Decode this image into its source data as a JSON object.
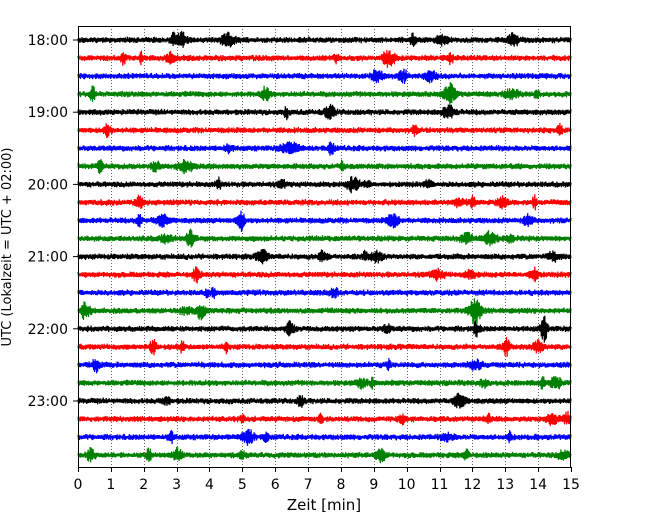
{
  "chart_data": {
    "type": "line",
    "title": "",
    "xlabel": "Zeit  [min]",
    "ylabel": "UTC (Lokalzeit = UTC + 02:00)",
    "xlim": [
      0,
      15
    ],
    "x_ticks": [
      0,
      1,
      2,
      3,
      4,
      5,
      6,
      7,
      8,
      9,
      10,
      11,
      12,
      13,
      14,
      15
    ],
    "x_grid": "dotted vertical lines at each minute",
    "y_ticks": [
      "18:00",
      "19:00",
      "20:00",
      "21:00",
      "22:00",
      "23:00"
    ],
    "trace_interval_minutes": 15,
    "trace_start": "18:00",
    "trace_count": 24,
    "color_cycle": [
      "#000000",
      "#ff0000",
      "#0000ff",
      "#008000"
    ],
    "description_of_series": "helicorder traces, one per 15 minutes from 18:00 to 23:45 UTC"
  }
}
